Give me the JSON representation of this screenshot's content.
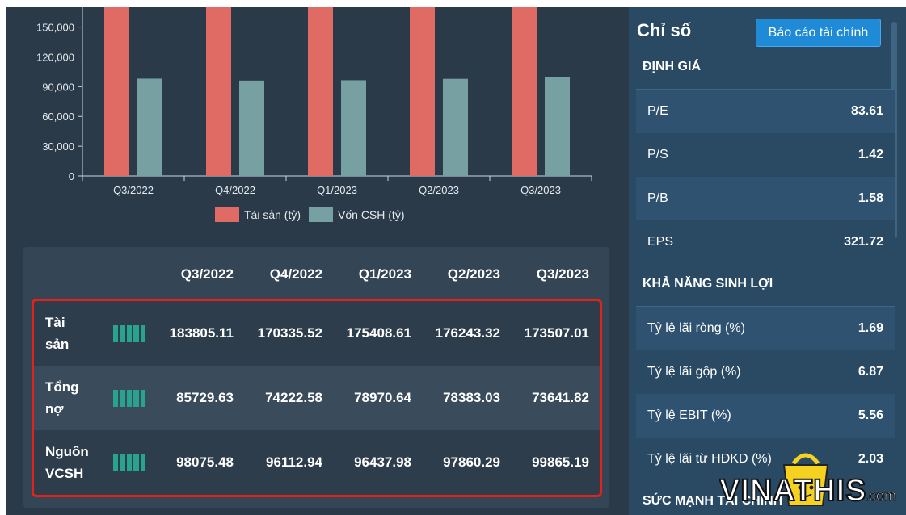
{
  "chart_data": {
    "type": "bar",
    "categories": [
      "Q3/2022",
      "Q4/2022",
      "Q1/2023",
      "Q2/2023",
      "Q3/2023"
    ],
    "series": [
      {
        "name": "Tài sản (tỷ)",
        "values": [
          183805.11,
          170335.52,
          175408.61,
          176243.32,
          173507.01
        ],
        "color": "#df6b64"
      },
      {
        "name": "Vốn CSH (tỷ)",
        "values": [
          98075.48,
          96112.94,
          96437.98,
          97860.29,
          99865.19
        ],
        "color": "#76a0a2"
      }
    ],
    "ylim": [
      0,
      170000
    ],
    "yticks": [
      "0",
      "30,000",
      "60,000",
      "90,000",
      "120,000",
      "150,000"
    ],
    "ytick_values": [
      0,
      30000,
      60000,
      90000,
      120000,
      150000
    ],
    "legend_position": "bottom"
  },
  "table": {
    "headers": [
      "Q3/2022",
      "Q4/2022",
      "Q1/2023",
      "Q2/2023",
      "Q3/2023"
    ],
    "rows": [
      {
        "label_line1": "Tài",
        "label_line2": "sản",
        "values": [
          "183805.11",
          "170335.52",
          "175408.61",
          "176243.32",
          "173507.01"
        ]
      },
      {
        "label_line1": "Tổng",
        "label_line2": "nợ",
        "values": [
          "85729.63",
          "74222.58",
          "78970.64",
          "78383.03",
          "73641.82"
        ]
      },
      {
        "label_line1": "Nguồn",
        "label_line2": "VCSH",
        "values": [
          "98075.48",
          "96112.94",
          "96437.98",
          "97860.29",
          "99865.19"
        ]
      }
    ],
    "highlight_color": "#e8201a",
    "spark_color": "#2aa38e"
  },
  "panel": {
    "title": "Chỉ số",
    "report_button": "Báo cáo tài chính",
    "valuation": {
      "heading": "ĐỊNH GIÁ",
      "items": [
        {
          "label": "P/E",
          "value": "83.61"
        },
        {
          "label": "P/S",
          "value": "1.42"
        },
        {
          "label": "P/B",
          "value": "1.58"
        },
        {
          "label": "EPS",
          "value": "321.72"
        }
      ]
    },
    "profitability": {
      "heading": "KHẢ NĂNG SINH LỢI",
      "items": [
        {
          "label": "Tỷ lệ lãi ròng (%)",
          "value": "1.69"
        },
        {
          "label": "Tỷ lệ lãi gộp (%)",
          "value": "6.87"
        },
        {
          "label": "Tỷ lệ EBIT (%)",
          "value": "5.56"
        },
        {
          "label": "Tỷ lệ lãi từ HĐKD (%)",
          "value": "2.03"
        }
      ]
    },
    "strength": {
      "heading": "SỨC MẠNH TÀI CHÍNH"
    }
  },
  "watermark": {
    "brand": "VINATHIS",
    "suffix": ".com"
  }
}
